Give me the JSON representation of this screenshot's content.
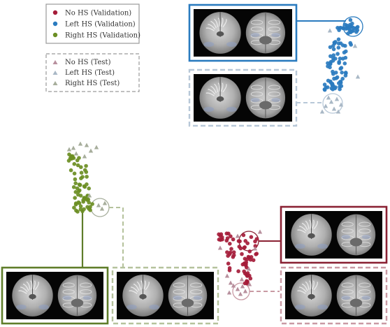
{
  "legend_validation": {
    "items": [
      {
        "label": "No HS (Validation)",
        "color": "#a51c3a",
        "marker": "circle"
      },
      {
        "label": "Left HS (Validation)",
        "color": "#2a7bbf",
        "marker": "circle"
      },
      {
        "label": "Right HS (Validation)",
        "color": "#6b8e23",
        "marker": "circle"
      }
    ]
  },
  "legend_test": {
    "items": [
      {
        "label": "No HS (Test)",
        "color": "#b8909e",
        "marker": "triangle"
      },
      {
        "label": "Left HS (Test)",
        "color": "#a9b8c6",
        "marker": "triangle"
      },
      {
        "label": "Right HS (Test)",
        "color": "#a7ae9c",
        "marker": "triangle"
      }
    ]
  },
  "clusters": [
    {
      "id": "left-hs",
      "color": "#2a7bbf",
      "test_color": "#a9b8c6",
      "panel_solid_color": "#2a7bbf",
      "panel_dashed_color": "#b8c8d8"
    },
    {
      "id": "right-hs",
      "color": "#6b8e23",
      "test_color": "#a7ae9c",
      "panel_solid_color": "#5f7d2a",
      "panel_dashed_color": "#b5c29c"
    },
    {
      "id": "no-hs",
      "color": "#a51c3a",
      "test_color": "#b8909e",
      "panel_solid_color": "#8a2234",
      "panel_dashed_color": "#c99aa4"
    }
  ]
}
